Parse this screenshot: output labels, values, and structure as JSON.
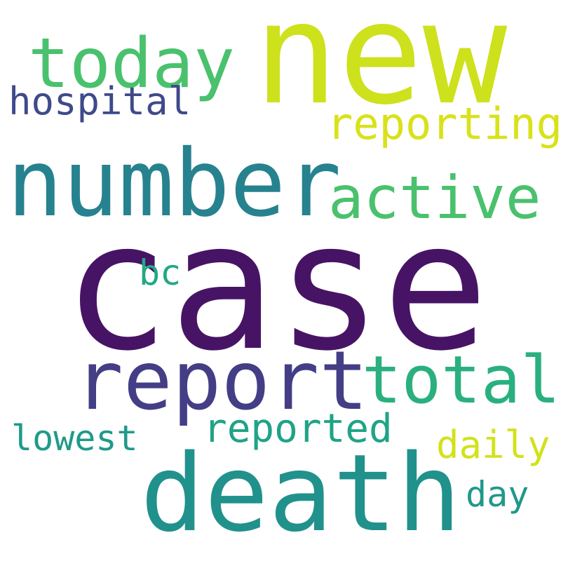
{
  "words": {
    "new": {
      "text": "new",
      "color": "#cde11d"
    },
    "today": {
      "text": "today",
      "color": "#4ac16d"
    },
    "hospital": {
      "text": "hospital",
      "color": "#3e4a89"
    },
    "reporting": {
      "text": "reporting",
      "color": "#d8e219"
    },
    "number": {
      "text": "number",
      "color": "#26828e"
    },
    "active": {
      "text": "active",
      "color": "#4ac16d"
    },
    "case": {
      "text": "case",
      "color": "#471465"
    },
    "bc": {
      "text": "bc",
      "color": "#22a884"
    },
    "report": {
      "text": "report",
      "color": "#433e85"
    },
    "total": {
      "text": "total",
      "color": "#2ab07f"
    },
    "reported": {
      "text": "reported",
      "color": "#20a386"
    },
    "lowest": {
      "text": "lowest",
      "color": "#1f9a8a"
    },
    "daily": {
      "text": "daily",
      "color": "#d2e21b"
    },
    "death": {
      "text": "death",
      "color": "#21918c"
    },
    "day": {
      "text": "day",
      "color": "#1f988b"
    }
  }
}
